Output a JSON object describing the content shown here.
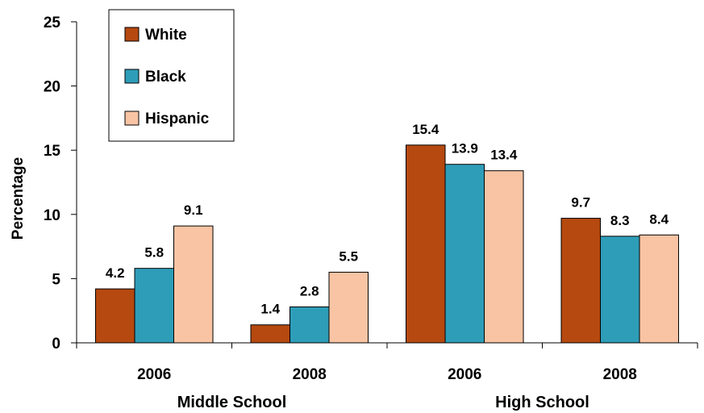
{
  "chart_data": {
    "type": "bar",
    "ylabel": "Percentage",
    "ylim": [
      0,
      25
    ],
    "yticks": [
      0,
      5,
      10,
      15,
      20,
      25
    ],
    "grid": false,
    "legend_position": "top-left",
    "groups": [
      {
        "label": "Middle School",
        "categories": [
          "2006",
          "2008"
        ]
      },
      {
        "label": "High School",
        "categories": [
          "2006",
          "2008"
        ]
      }
    ],
    "categories": [
      "2006",
      "2008",
      "2006",
      "2008"
    ],
    "series": [
      {
        "name": "White",
        "color": "#B5490F",
        "values": [
          4.2,
          1.4,
          15.4,
          9.7
        ],
        "labels": [
          "4.2",
          "1.4",
          "15.4",
          "9.7"
        ]
      },
      {
        "name": "Black",
        "color": "#2E9DB8",
        "values": [
          5.8,
          2.8,
          13.9,
          8.3
        ],
        "labels": [
          "5.8",
          "2.8",
          "13.9",
          "8.3"
        ]
      },
      {
        "name": "Hispanic",
        "color": "#F8C4A4",
        "values": [
          9.1,
          5.5,
          13.4,
          8.4
        ],
        "labels": [
          "9.1",
          "5.5",
          "13.4",
          "8.4"
        ]
      }
    ]
  }
}
